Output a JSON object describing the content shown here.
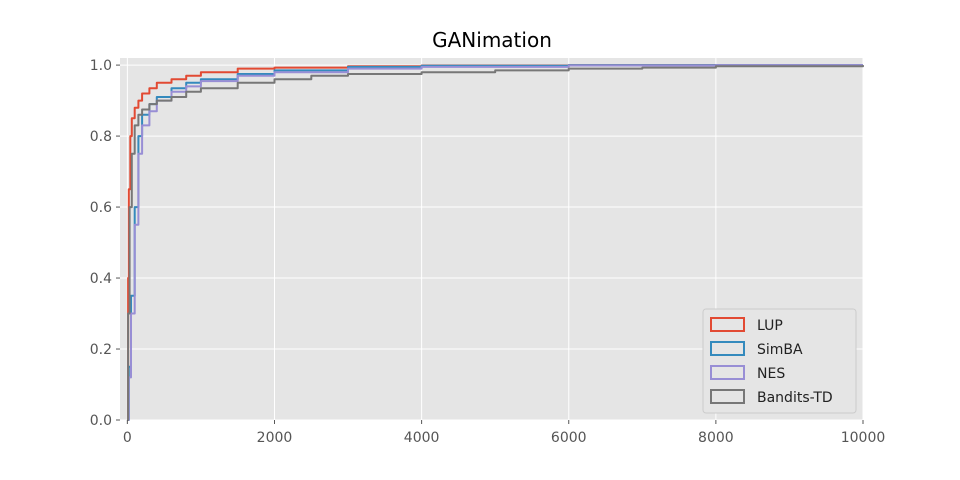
{
  "chart_data": {
    "type": "line",
    "title": "GANimation",
    "xlabel": "",
    "ylabel": "",
    "xlim": [
      -100,
      10000
    ],
    "ylim": [
      0.0,
      1.02
    ],
    "x_ticks": [
      0,
      2000,
      4000,
      6000,
      8000,
      10000
    ],
    "x_tick_labels": [
      "0",
      "2000",
      "4000",
      "6000",
      "8000",
      "10000"
    ],
    "y_ticks": [
      0.0,
      0.2,
      0.4,
      0.6,
      0.8,
      1.0
    ],
    "y_tick_labels": [
      "0.0",
      "0.2",
      "0.4",
      "0.6",
      "0.8",
      "1.0"
    ],
    "grid": true,
    "legend_position": "bottom-right",
    "background": "#e5e5e5",
    "series": [
      {
        "name": "LUP",
        "color": "#e24a33",
        "x": [
          0,
          10,
          20,
          40,
          60,
          100,
          150,
          200,
          300,
          400,
          600,
          800,
          1000,
          1500,
          2000,
          3000,
          4000,
          6000,
          8000,
          10000
        ],
        "y": [
          0.0,
          0.4,
          0.65,
          0.8,
          0.85,
          0.88,
          0.9,
          0.92,
          0.935,
          0.95,
          0.96,
          0.97,
          0.98,
          0.99,
          0.993,
          0.997,
          0.999,
          1.0,
          1.0,
          1.0
        ]
      },
      {
        "name": "SimBA",
        "color": "#348abd",
        "x": [
          0,
          20,
          50,
          100,
          150,
          200,
          300,
          400,
          600,
          800,
          1000,
          1500,
          2000,
          3000,
          4000,
          6000,
          8000,
          10000
        ],
        "y": [
          0.0,
          0.15,
          0.35,
          0.6,
          0.8,
          0.86,
          0.89,
          0.91,
          0.935,
          0.95,
          0.96,
          0.975,
          0.985,
          0.995,
          0.998,
          1.0,
          1.0,
          1.0
        ]
      },
      {
        "name": "NES",
        "color": "#988ed5",
        "x": [
          0,
          20,
          50,
          100,
          150,
          200,
          300,
          400,
          600,
          800,
          1000,
          1500,
          2000,
          3000,
          4000,
          6000,
          8000,
          10000
        ],
        "y": [
          0.0,
          0.12,
          0.3,
          0.55,
          0.75,
          0.83,
          0.87,
          0.9,
          0.925,
          0.94,
          0.955,
          0.97,
          0.98,
          0.99,
          0.995,
          0.999,
          1.0,
          1.0
        ]
      },
      {
        "name": "Bandits-TD",
        "color": "#777777",
        "x": [
          0,
          10,
          30,
          60,
          100,
          150,
          200,
          300,
          400,
          600,
          800,
          1000,
          1500,
          2000,
          2500,
          3000,
          4000,
          5000,
          6000,
          7000,
          8000,
          10000
        ],
        "y": [
          0.0,
          0.3,
          0.6,
          0.75,
          0.83,
          0.86,
          0.875,
          0.89,
          0.9,
          0.91,
          0.925,
          0.935,
          0.95,
          0.96,
          0.97,
          0.975,
          0.98,
          0.985,
          0.99,
          0.993,
          0.997,
          1.0
        ]
      }
    ]
  }
}
